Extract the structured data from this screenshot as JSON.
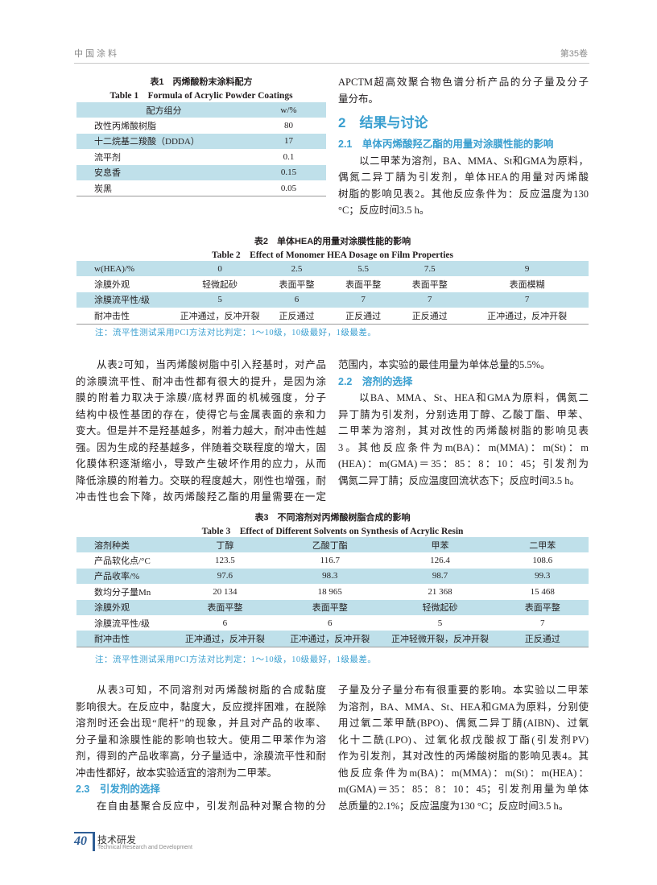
{
  "header": {
    "journal": "中国涂料",
    "volume": "第35卷"
  },
  "table1": {
    "title_cn": "表1　丙烯酸粉末涂料配方",
    "title_en": "Table 1　Formula of Acrylic Powder Coatings",
    "headers": [
      "配方组分",
      "w/%"
    ],
    "rows": [
      [
        "改性丙烯酸树脂",
        "80"
      ],
      [
        "十二烷基二羧酸（DDDA）",
        "17"
      ],
      [
        "流平剂",
        "0.1"
      ],
      [
        "安息香",
        "0.15"
      ],
      [
        "炭黑",
        "0.05"
      ]
    ]
  },
  "right_top": {
    "p_cont": [
      "APCTM超高效聚合物色谱分析产品的分子量及分子",
      "量分布。"
    ],
    "h2": "2　结果与讨论",
    "h21": "2.1　单体丙烯酸羟乙酯的用量对涂膜性能的影响",
    "p21": [
      "以二甲苯为溶剂，BA、MMA、St和GMA为原料，",
      "偶氮二异丁腈为引发剂，单体HEA的用量对丙烯酸",
      "树脂的影响见表2。其他反应条件为：反应温度为130",
      "°C；反应时间3.5 h。"
    ]
  },
  "table2": {
    "title_cn": "表2　单体HEA的用量对涂膜性能的影响",
    "title_en": "Table 2　Effect of Monomer HEA Dosage on Film Properties",
    "rows": [
      [
        "w(HEA)/%",
        "0",
        "2.5",
        "5.5",
        "7.5",
        "9"
      ],
      [
        "涂膜外观",
        "轻微起砂",
        "表面平整",
        "表面平整",
        "表面平整",
        "表面模糊"
      ],
      [
        "涂膜流平性/级",
        "5",
        "6",
        "7",
        "7",
        "7"
      ],
      [
        "耐冲击性",
        "正冲通过，反冲开裂",
        "正反通过",
        "正反通过",
        "正反通过",
        "正冲通过，反冲开裂"
      ]
    ],
    "note": "注：流平性测试采用PCI方法对比判定：1～10级，10级最好，1级最差。"
  },
  "mid_left": {
    "p": [
      "从表2可知，当丙烯酸树脂中引入羟基时，对产品",
      "的涂膜流平性、耐冲击性都有很大的提升，是因为涂",
      "膜的附着力取决于涂膜/底材界面的机械强度，分子",
      "结构中极性基团的存在，使得它与金属表面的亲和力",
      "变大。但是并不是羟基越多，附着力越大，耐冲击性越",
      "强。因为生成的羟基越多，伴随着交联程度的增大，固",
      "化膜体积逐渐缩小，导致产生破坏作用的应力，从而",
      "降低涂膜的附着力。交联的程度越大，刚性也增强，耐",
      "冲击性也会下降，故丙烯酸羟乙酯的用量需要在一定"
    ]
  },
  "mid_right": {
    "p_cont": [
      "范围内，本实验的最佳用量为单体总量的5.5%。"
    ],
    "h22": "2.2　溶剂的选择",
    "p22": [
      "以BA、MMA、St、HEA和GMA为原料，偶氮二",
      "异丁腈为引发剂，分别选用丁醇、乙酸丁酯、甲苯、",
      "二甲苯为溶剂，其对改性的丙烯酸树脂的影响见表",
      "3。其他反应条件为m(BA)：m(MMA)：m(St)：m",
      "(HEA)：m(GMA)＝35：85：8：10：45；引发剂为",
      "偶氮二异丁腈；反应温度回流状态下；反应时间3.5 h。"
    ]
  },
  "table3": {
    "title_cn": "表3　不同溶剂对丙烯酸树脂合成的影响",
    "title_en": "Table 3　Effect of Different Solvents on Synthesis of Acrylic Resin",
    "rows": [
      [
        "溶剂种类",
        "丁醇",
        "乙酸丁酯",
        "甲苯",
        "二甲苯"
      ],
      [
        "产品软化点/°C",
        "123.5",
        "116.7",
        "126.4",
        "108.6"
      ],
      [
        "产品收率/%",
        "97.6",
        "98.3",
        "98.7",
        "99.3"
      ],
      [
        "数均分子量Mn",
        "20 134",
        "18 965",
        "21 368",
        "15 468"
      ],
      [
        "涂膜外观",
        "表面平整",
        "表面平整",
        "轻微起砂",
        "表面平整"
      ],
      [
        "涂膜流平性/级",
        "6",
        "6",
        "5",
        "7"
      ],
      [
        "耐冲击性",
        "正冲通过，反冲开裂",
        "正冲通过，反冲开裂",
        "正冲轻微开裂，反冲开裂",
        "正反通过"
      ]
    ],
    "note": "注：流平性测试采用PCI方法对比判定：1～10级，10级最好，1级最差。"
  },
  "bottom_left": {
    "p": [
      "从表3可知，不同溶剂对丙烯酸树脂的合成黏度",
      "影响很大。在反应中，黏度大，反应搅拌困难，在脱除",
      "溶剂时还会出现“爬杆”的现象，并且对产品的收率、",
      "分子量和涂膜性能的影响也较大。使用二甲苯作为溶",
      "剂，得到的产品收率高，分子量适中，涂膜流平性和耐",
      "冲击性都好，故本实验适宜的溶剂为二甲苯。"
    ],
    "h23": "2.3　引发剂的选择",
    "p23": [
      "在自由基聚合反应中，引发剂品种对聚合物的分"
    ]
  },
  "bottom_right": {
    "p": [
      "子量及分子量分布有很重要的影响。本实验以二甲苯",
      "为溶剂，BA、MMA、St、HEA和GMA为原料，分别使",
      "用过氧二苯甲酰(BPO)、偶氮二异丁腈(AIBN)、过氧",
      "化十二酰(LPO)、过氧化叔戊酸叔丁酯(引发剂PV)",
      "作为引发剂，其对改性的丙烯酸树脂的影响见表4。其",
      "他反应条件为m(BA)：m(MMA)：m(St)：m(HEA)：",
      "m(GMA)＝35：85：8：10：45；引发剂用量为单体",
      "总质量的2.1%；反应温度为130 °C；反应时间3.5 h。"
    ]
  },
  "footer": {
    "page": "40",
    "section_cn": "技术研发",
    "section_en": "Technical Research and Development"
  },
  "colors": {
    "heading": "#3a9fd0",
    "table_shade": "#bfe0ea",
    "footer": "#2e5e96"
  }
}
